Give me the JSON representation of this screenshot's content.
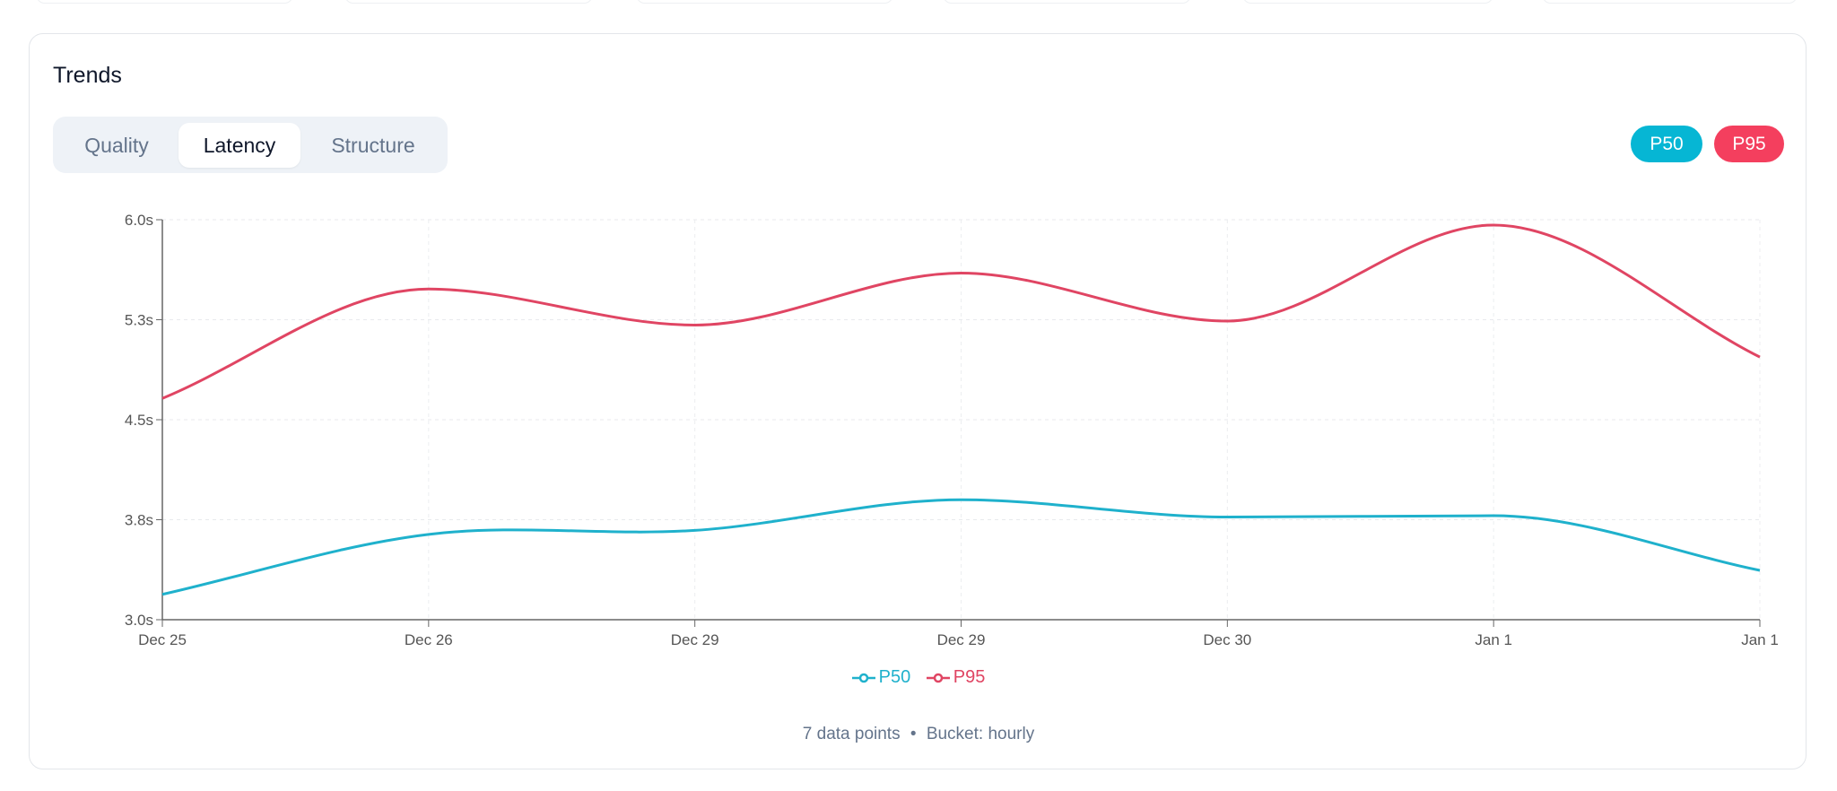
{
  "card": {
    "title": "Trends",
    "tabs": [
      {
        "label": "Quality",
        "active": false
      },
      {
        "label": "Latency",
        "active": true
      },
      {
        "label": "Structure",
        "active": false
      }
    ],
    "series_toggles": [
      {
        "label": "P50",
        "color": "#06b6d4"
      },
      {
        "label": "P95",
        "color": "#f43f5e"
      }
    ],
    "footer": {
      "points": "7 data points",
      "separator": "•",
      "bucket": "Bucket: hourly"
    }
  },
  "chart_data": {
    "type": "line",
    "categories": [
      "Dec 25",
      "Dec 26",
      "Dec 29",
      "Dec 29",
      "Dec 30",
      "Jan 1",
      "Jan 1"
    ],
    "series": [
      {
        "name": "P50",
        "color": "#1fb1cc",
        "values": [
          3.19,
          3.64,
          3.67,
          3.9,
          3.77,
          3.78,
          3.37
        ]
      },
      {
        "name": "P95",
        "color": "#e04563",
        "values": [
          4.66,
          5.48,
          5.21,
          5.6,
          5.24,
          5.96,
          4.97
        ]
      }
    ],
    "ylim": [
      3.0,
      6.0
    ],
    "yticks": [
      3.0,
      3.75,
      4.5,
      5.25,
      6.0
    ],
    "ytick_labels": [
      "3.0s",
      "3.8s",
      "4.5s",
      "5.3s",
      "6.0s"
    ],
    "grid": true,
    "legend": "bottom"
  }
}
